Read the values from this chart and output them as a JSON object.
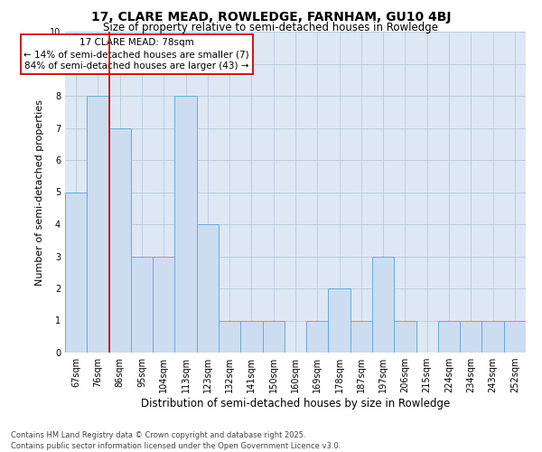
{
  "title": "17, CLARE MEAD, ROWLEDGE, FARNHAM, GU10 4BJ",
  "subtitle": "Size of property relative to semi-detached houses in Rowledge",
  "xlabel": "Distribution of semi-detached houses by size in Rowledge",
  "ylabel": "Number of semi-detached properties",
  "categories": [
    "67sqm",
    "76sqm",
    "86sqm",
    "95sqm",
    "104sqm",
    "113sqm",
    "123sqm",
    "132sqm",
    "141sqm",
    "150sqm",
    "160sqm",
    "169sqm",
    "178sqm",
    "187sqm",
    "197sqm",
    "206sqm",
    "215sqm",
    "224sqm",
    "234sqm",
    "243sqm",
    "252sqm"
  ],
  "values": [
    5,
    8,
    7,
    3,
    3,
    8,
    4,
    1,
    1,
    1,
    0,
    1,
    2,
    1,
    3,
    1,
    0,
    1,
    1,
    1,
    1
  ],
  "bar_color": "#ccddf0",
  "bar_edge_color": "#6aaad4",
  "subject_bar_index": 1,
  "subject_line_color": "#cc0000",
  "annotation_text": "17 CLARE MEAD: 78sqm\n← 14% of semi-detached houses are smaller (7)\n84% of semi-detached houses are larger (43) →",
  "annotation_box_color": "#cc0000",
  "ylim": [
    0,
    10
  ],
  "yticks": [
    0,
    1,
    2,
    3,
    4,
    5,
    6,
    7,
    8,
    9,
    10
  ],
  "grid_color": "#b8c8dc",
  "background_color": "#dde8f4",
  "footer_line1": "Contains HM Land Registry data © Crown copyright and database right 2025.",
  "footer_line2": "Contains public sector information licensed under the Open Government Licence v3.0.",
  "title_fontsize": 10,
  "subtitle_fontsize": 8.5,
  "ylabel_fontsize": 8,
  "xlabel_fontsize": 8.5,
  "tick_fontsize": 7,
  "annotation_fontsize": 7.5,
  "footer_fontsize": 6
}
